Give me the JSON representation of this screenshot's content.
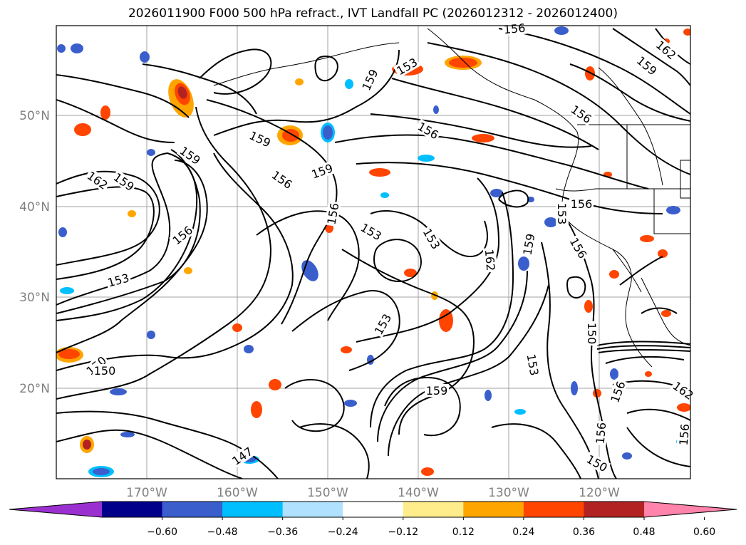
{
  "title": "2026011900 F000 500 hPa refract., IVT Landfall PC (2026012312 - 2026012400)",
  "map": {
    "lat_labels": [
      "50°N",
      "40°N",
      "30°N",
      "20°N"
    ],
    "lon_labels": [
      "170°W",
      "160°W",
      "150°W",
      "140°W",
      "130°W",
      "120°W"
    ],
    "contour_labels": [
      "162",
      "159",
      "159",
      "156",
      "153",
      "150",
      "147",
      "159",
      "156",
      "159",
      "156",
      "153",
      "156",
      "159",
      "153",
      "153",
      "159",
      "156",
      "162",
      "159",
      "150",
      "153",
      "156",
      "153",
      "150",
      "162",
      "159",
      "156",
      "150",
      "156",
      "162",
      "156",
      "156",
      "153",
      "156"
    ]
  },
  "colorbar": {
    "ticks": [
      "−0.60",
      "−0.48",
      "−0.36",
      "−0.24",
      "−0.12",
      "0.12",
      "0.24",
      "0.36",
      "0.48",
      "0.60"
    ],
    "colors": [
      "#9b30d0",
      "#00008b",
      "#3a5fcd",
      "#00bfff",
      "#b0e2ff",
      "#ffffff",
      "#ffec8b",
      "#ffa500",
      "#ff4500",
      "#b22222",
      "#ff83aa"
    ]
  }
}
